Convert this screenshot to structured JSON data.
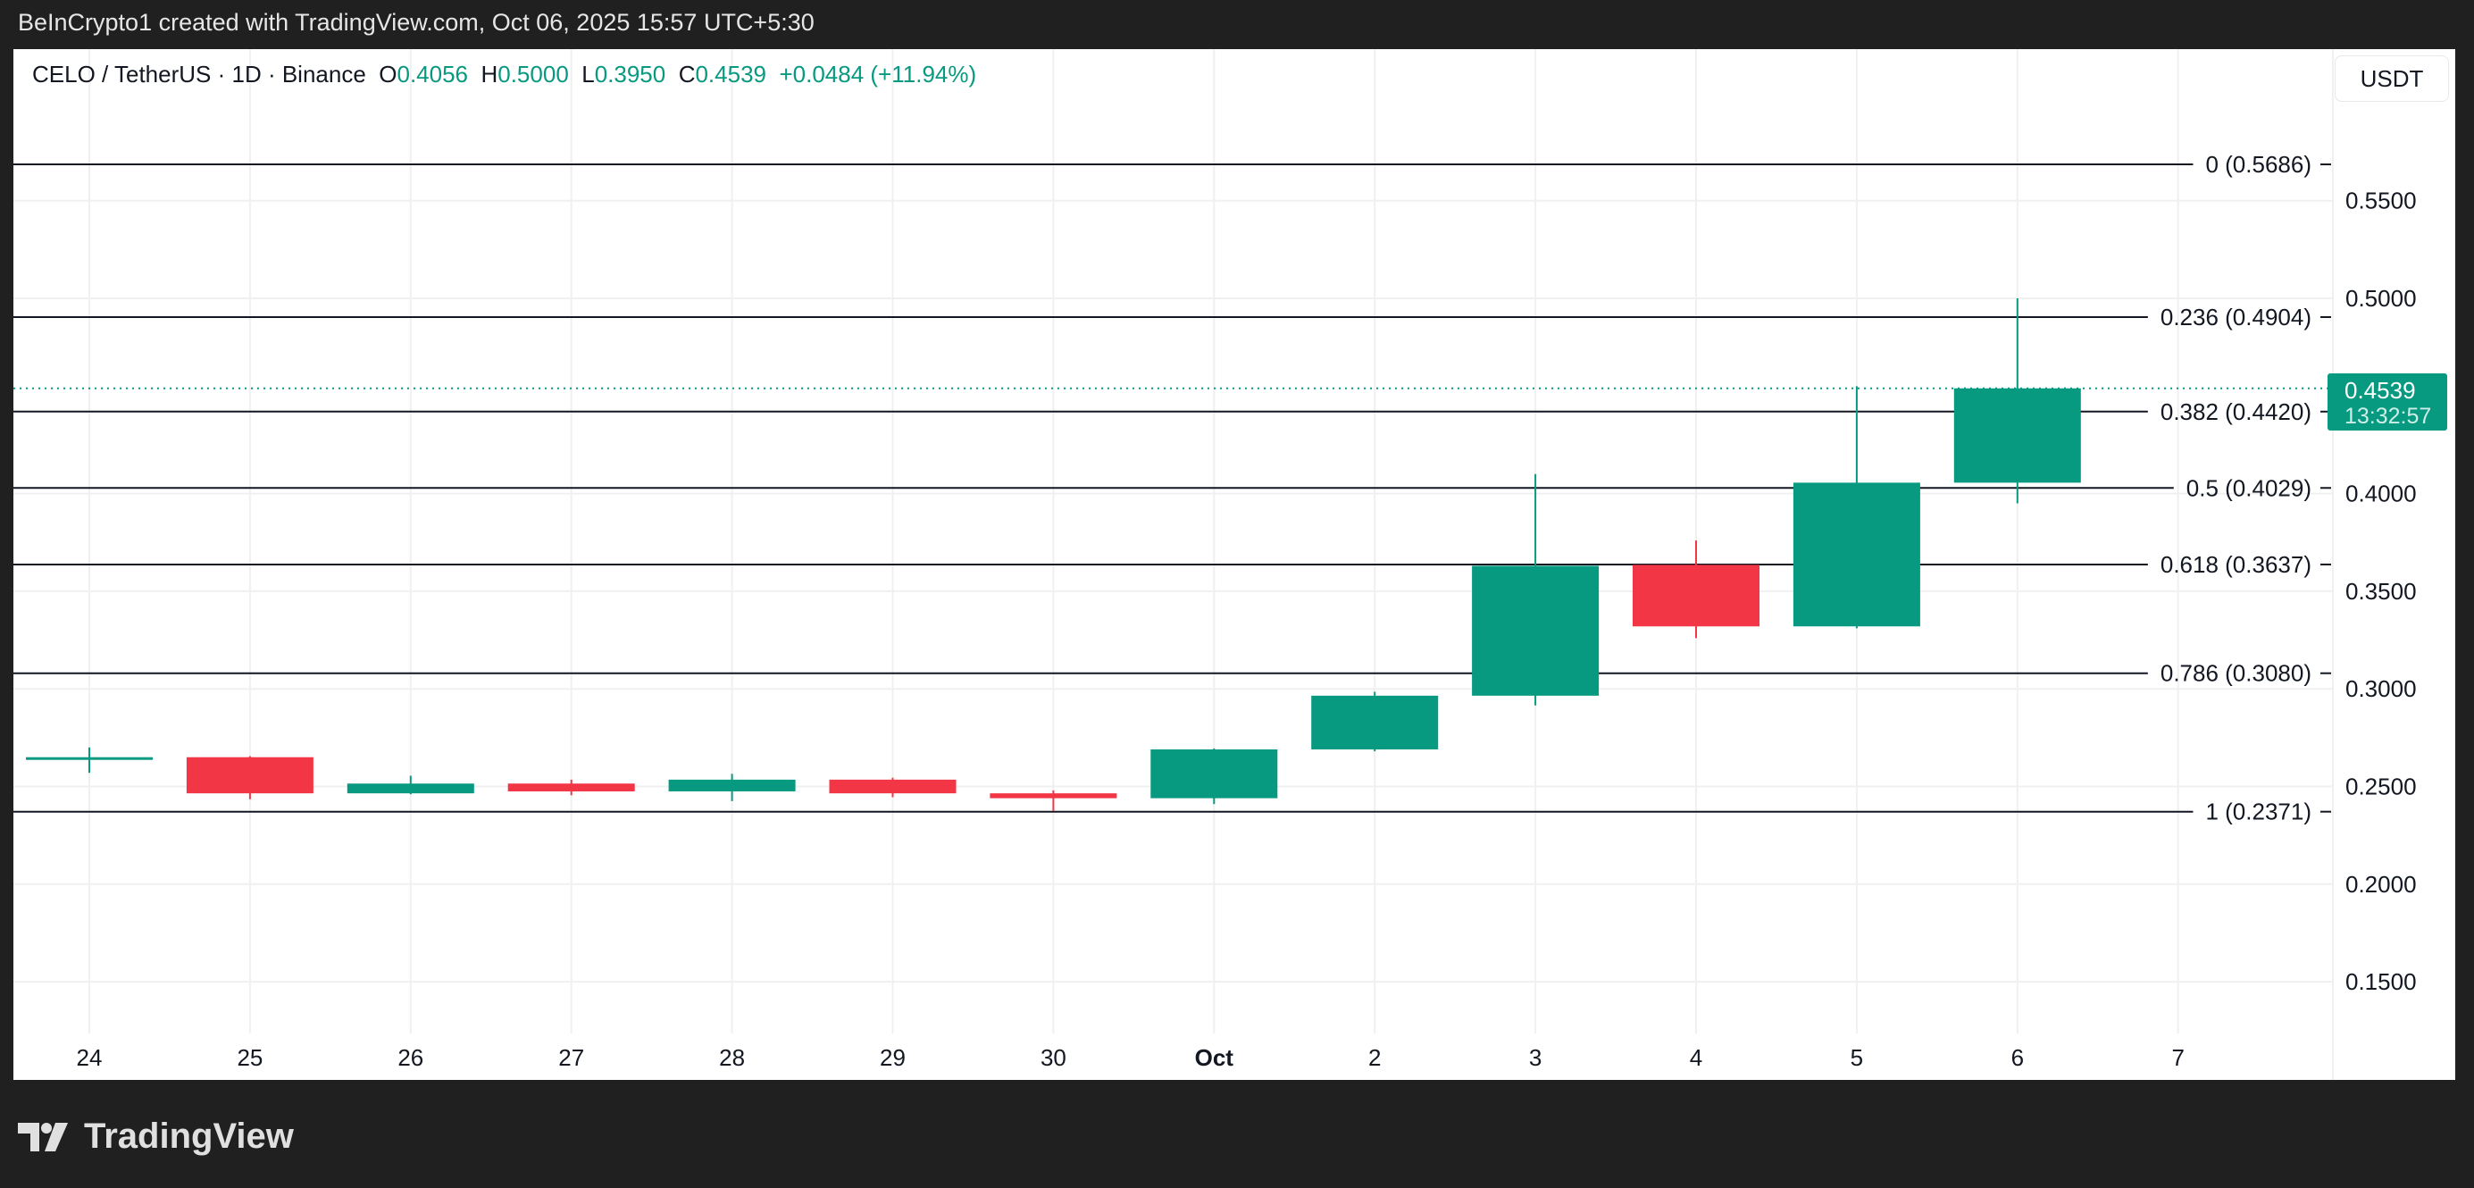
{
  "attribution": "BeInCrypto1 created with TradingView.com, Oct 06, 2025 15:57 UTC+5:30",
  "legend": {
    "symbol": "CELO / TetherUS · 1D · Binance",
    "o_label": "O",
    "o": "0.4056",
    "h_label": "H",
    "h": "0.5000",
    "l_label": "L",
    "l": "0.3950",
    "c_label": "C",
    "c": "0.4539",
    "change": "+0.0484 (+11.94%)"
  },
  "currency_button": "USDT",
  "price_tag": {
    "price": "0.4539",
    "countdown": "13:32:57"
  },
  "logo_text": "TradingView",
  "colors": {
    "up": "#089981",
    "down": "#f23645",
    "fib": "#131722",
    "grid": "#f0f0f0"
  },
  "chart_data": {
    "type": "candlestick",
    "categories": [
      "24",
      "25",
      "26",
      "27",
      "28",
      "29",
      "30",
      "Oct",
      "2",
      "3",
      "4",
      "5",
      "6"
    ],
    "x_ticks": [
      "24",
      "25",
      "26",
      "27",
      "28",
      "29",
      "30",
      "Oct",
      "2",
      "3",
      "4",
      "5",
      "6",
      "7"
    ],
    "ohlc": [
      {
        "o": 0.264,
        "h": 0.27,
        "l": 0.257,
        "c": 0.265
      },
      {
        "o": 0.265,
        "h": 0.2655,
        "l": 0.2435,
        "c": 0.2465
      },
      {
        "o": 0.2465,
        "h": 0.2555,
        "l": 0.246,
        "c": 0.2515
      },
      {
        "o": 0.2515,
        "h": 0.2535,
        "l": 0.2455,
        "c": 0.2475
      },
      {
        "o": 0.2475,
        "h": 0.2565,
        "l": 0.2425,
        "c": 0.2535
      },
      {
        "o": 0.2535,
        "h": 0.2545,
        "l": 0.2445,
        "c": 0.2465
      },
      {
        "o": 0.2465,
        "h": 0.248,
        "l": 0.2375,
        "c": 0.244
      },
      {
        "o": 0.244,
        "h": 0.2695,
        "l": 0.241,
        "c": 0.269
      },
      {
        "o": 0.269,
        "h": 0.2985,
        "l": 0.268,
        "c": 0.2965
      },
      {
        "o": 0.2965,
        "h": 0.41,
        "l": 0.2915,
        "c": 0.363
      },
      {
        "o": 0.3635,
        "h": 0.376,
        "l": 0.326,
        "c": 0.332
      },
      {
        "o": 0.332,
        "h": 0.455,
        "l": 0.331,
        "c": 0.4056
      },
      {
        "o": 0.4056,
        "h": 0.5,
        "l": 0.395,
        "c": 0.4539
      }
    ],
    "y_ticks": [
      "0.1500",
      "0.2000",
      "0.2500",
      "0.3000",
      "0.3500",
      "0.4000",
      "0.5000",
      "0.5500"
    ],
    "ylim": [
      0.1,
      0.6
    ],
    "grid": true,
    "last_price": 0.4539,
    "fib_levels": [
      {
        "label": "0 (0.5686)",
        "price": 0.5686
      },
      {
        "label": "0.236 (0.4904)",
        "price": 0.4904
      },
      {
        "label": "0.382 (0.4420)",
        "price": 0.442
      },
      {
        "label": "0.5 (0.4029)",
        "price": 0.4029
      },
      {
        "label": "0.618 (0.3637)",
        "price": 0.3637
      },
      {
        "label": "0.786 (0.3080)",
        "price": 0.308
      },
      {
        "label": "1 (0.2371)",
        "price": 0.2371
      }
    ]
  }
}
